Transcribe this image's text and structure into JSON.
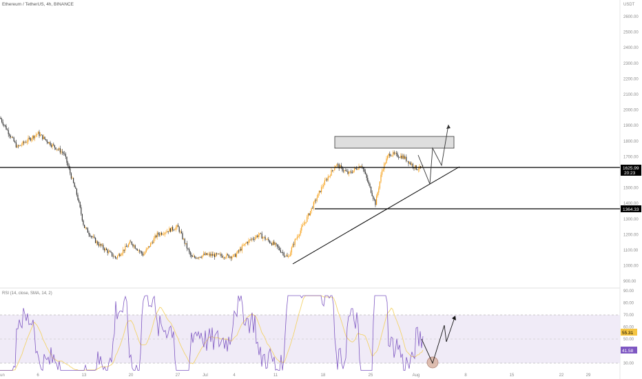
{
  "header": {
    "symbol": "Ethereum / TetherUS, 4h, BINANCE"
  },
  "price_axis": {
    "currency": "USDT",
    "labels": [
      "2600.00",
      "2500.00",
      "2400.00",
      "2300.00",
      "2200.00",
      "2100.00",
      "2000.00",
      "1900.00",
      "1800.00",
      "1700.00",
      "1600.00",
      "1500.00",
      "1400.00",
      "1300.00",
      "1200.00",
      "1100.00",
      "1000.00",
      "900.00"
    ]
  },
  "time_axis": {
    "labels": [
      "Jun",
      "6",
      "13",
      "20",
      "27",
      "Jul",
      "4",
      "11",
      "18",
      "25",
      "Aug",
      "8",
      "15",
      "22",
      "29"
    ]
  },
  "price_tag": {
    "price": "1625.99",
    "countdown": "20:23",
    "color": "#000000"
  },
  "level_tag": {
    "price": "1364.33",
    "color": "#000000"
  },
  "rsi": {
    "label": "RSI (14, close, SMA, 14, 2)",
    "axis_labels": [
      "90.00",
      "80.00",
      "70.00",
      "60.00",
      "50.00",
      "40.00",
      "30.00"
    ],
    "value_tag": "55.31",
    "sma_tag": "41.58",
    "value_color": "#f5c542",
    "sma_color": "#7e57c2",
    "band_color": "#ede7f6"
  },
  "colors": {
    "up": "#f7a21b",
    "down": "#333333",
    "rsi_line": "#7e57c2",
    "rsi_ma": "#f3d36b"
  },
  "chart_data": {
    "type": "candlestick",
    "interval": "4h",
    "series": [
      {
        "name": "price_path",
        "x": [
          "Jun 1",
          "Jun 3",
          "Jun 6",
          "Jun 8",
          "Jun 10",
          "Jun 12",
          "Jun 13",
          "Jun 15",
          "Jun 18",
          "Jun 20",
          "Jun 22",
          "Jun 24",
          "Jun 27",
          "Jun 29",
          "Jul 1",
          "Jul 4",
          "Jul 6",
          "Jul 8",
          "Jul 11",
          "Jul 13",
          "Jul 14",
          "Jul 16",
          "Jul 18",
          "Jul 20",
          "Jul 22",
          "Jul 24",
          "Jul 26",
          "Jul 27",
          "Jul 28",
          "Jul 30",
          "Aug 1"
        ],
        "y": [
          1950,
          1760,
          1850,
          1780,
          1720,
          1450,
          1250,
          1150,
          1050,
          1150,
          1070,
          1200,
          1250,
          1050,
          1070,
          1060,
          1150,
          1200,
          1130,
          1050,
          1150,
          1300,
          1520,
          1650,
          1590,
          1650,
          1400,
          1620,
          1720,
          1700,
          1626
        ]
      }
    ],
    "levels": [
      1625.99,
      1364.33
    ],
    "resistance_zone": [
      1750,
      1830
    ],
    "ylim": [
      880,
      2650
    ]
  }
}
